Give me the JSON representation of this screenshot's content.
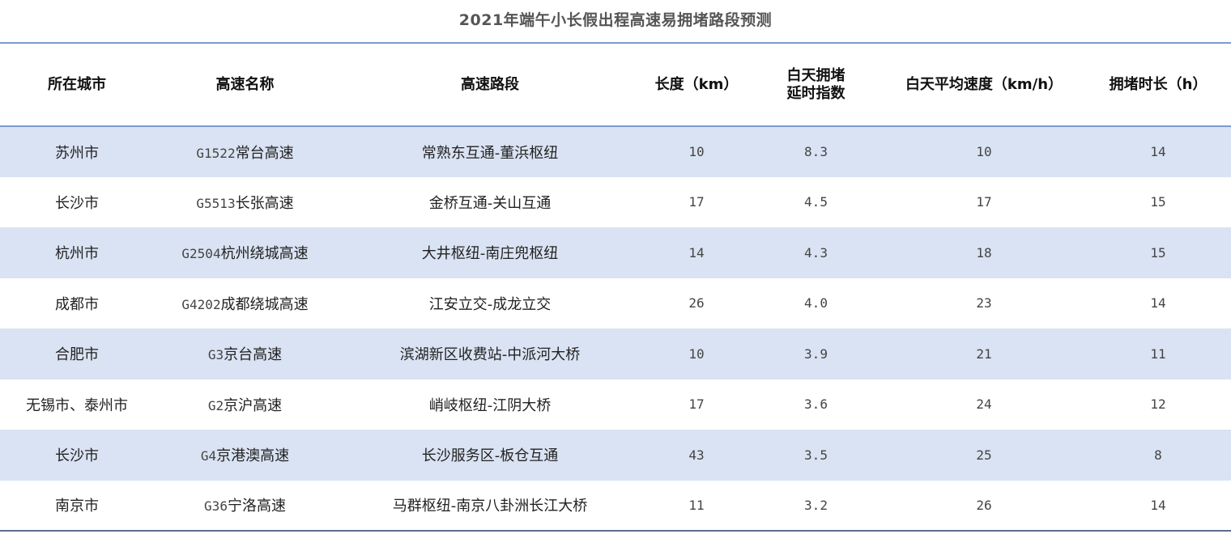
{
  "title": "2021年端午小长假出程高速易拥堵路段预测",
  "headers": [
    "所在城市",
    "高速名称",
    "高速路段",
    "长度（km）",
    "白天拥堵延时指数",
    "白天平均速度（km/h）",
    "拥堵时长（h）"
  ],
  "header_lines": {
    "delay_index_line1": "白天拥堵",
    "delay_index_line2": "延时指数"
  },
  "row_shade_color": "#dae3f3",
  "rule_color": "#7b9bd0",
  "rows": [
    {
      "city": "苏州市",
      "code": "G1522",
      "name": "常台高速",
      "section": "常熟东互通-董浜枢纽",
      "length": "10",
      "index": "8.3",
      "speed": "10",
      "hours": "14"
    },
    {
      "city": "长沙市",
      "code": "G5513",
      "name": "长张高速",
      "section": "金桥互通-关山互通",
      "length": "17",
      "index": "4.5",
      "speed": "17",
      "hours": "15"
    },
    {
      "city": "杭州市",
      "code": "G2504",
      "name": "杭州绕城高速",
      "section": "大井枢纽-南庄兜枢纽",
      "length": "14",
      "index": "4.3",
      "speed": "18",
      "hours": "15"
    },
    {
      "city": "成都市",
      "code": "G4202",
      "name": "成都绕城高速",
      "section": "江安立交-成龙立交",
      "length": "26",
      "index": "4.0",
      "speed": "23",
      "hours": "14"
    },
    {
      "city": "合肥市",
      "code": "G3",
      "name": "京台高速",
      "section": "滨湖新区收费站-中派河大桥",
      "length": "10",
      "index": "3.9",
      "speed": "21",
      "hours": "11"
    },
    {
      "city": "无锡市、泰州市",
      "code": "G2",
      "name": "京沪高速",
      "section": "峭岐枢纽-江阴大桥",
      "length": "17",
      "index": "3.6",
      "speed": "24",
      "hours": "12"
    },
    {
      "city": "长沙市",
      "code": "G4",
      "name": "京港澳高速",
      "section": "长沙服务区-板仓互通",
      "length": "43",
      "index": "3.5",
      "speed": "25",
      "hours": "8"
    },
    {
      "city": "南京市",
      "code": "G36",
      "name": "宁洛高速",
      "section": "马群枢纽-南京八卦洲长江大桥",
      "length": "11",
      "index": "3.2",
      "speed": "26",
      "hours": "14"
    }
  ]
}
